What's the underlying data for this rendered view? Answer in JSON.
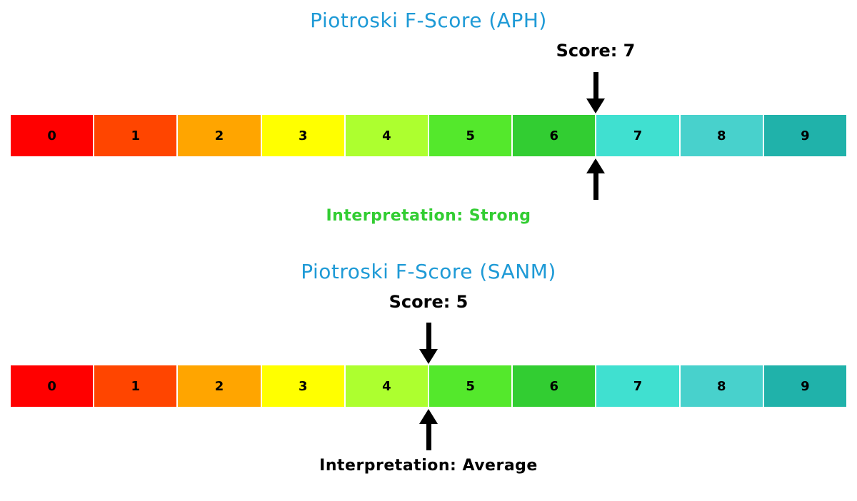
{
  "chart_data": [
    {
      "type": "heatmap",
      "title": "Piotroski F-Score (APH)",
      "title_color": "#1E9AD6",
      "score": 7,
      "score_label": "Score: 7",
      "interpretation": "Interpretation: Strong",
      "interpretation_color": "#32CD32",
      "x_range": [
        0,
        10
      ],
      "marker": "double-arrow-at-score-boundary",
      "segments": [
        {
          "label": "0",
          "color": "#FF0000"
        },
        {
          "label": "1",
          "color": "#FF4500"
        },
        {
          "label": "2",
          "color": "#FFA500"
        },
        {
          "label": "3",
          "color": "#FFFF00"
        },
        {
          "label": "4",
          "color": "#ADFF2F"
        },
        {
          "label": "5",
          "color": "#54E82C"
        },
        {
          "label": "6",
          "color": "#32CD32"
        },
        {
          "label": "7",
          "color": "#40E0D0"
        },
        {
          "label": "8",
          "color": "#48D1CC"
        },
        {
          "label": "9",
          "color": "#20B2AA"
        }
      ]
    },
    {
      "type": "heatmap",
      "title": "Piotroski F-Score (SANM)",
      "title_color": "#1E9AD6",
      "score": 5,
      "score_label": "Score: 5",
      "interpretation": "Interpretation: Average",
      "interpretation_color": "#000000",
      "x_range": [
        0,
        10
      ],
      "marker": "double-arrow-at-score-boundary",
      "segments": [
        {
          "label": "0",
          "color": "#FF0000"
        },
        {
          "label": "1",
          "color": "#FF4500"
        },
        {
          "label": "2",
          "color": "#FFA500"
        },
        {
          "label": "3",
          "color": "#FFFF00"
        },
        {
          "label": "4",
          "color": "#ADFF2F"
        },
        {
          "label": "5",
          "color": "#54E82C"
        },
        {
          "label": "6",
          "color": "#32CD32"
        },
        {
          "label": "7",
          "color": "#40E0D0"
        },
        {
          "label": "8",
          "color": "#48D1CC"
        },
        {
          "label": "9",
          "color": "#20B2AA"
        }
      ]
    }
  ]
}
